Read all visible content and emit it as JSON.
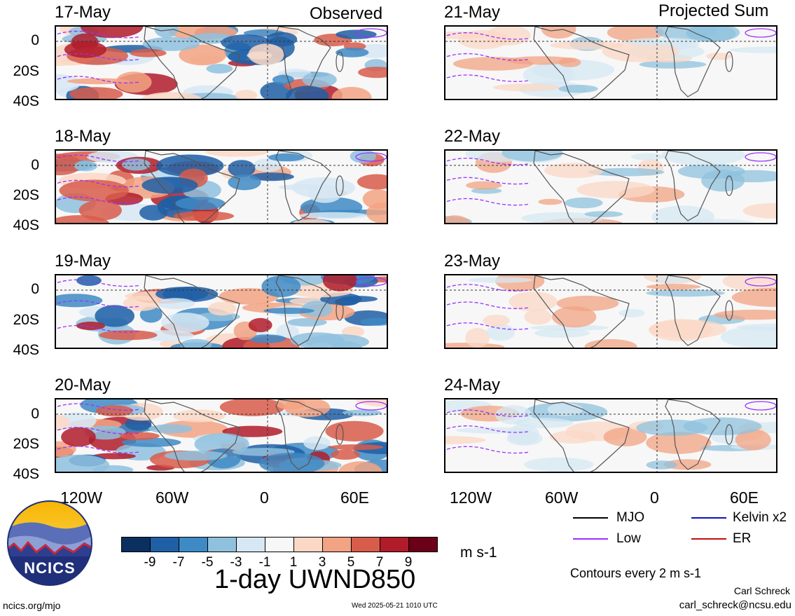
{
  "headers": {
    "observed": "Observed",
    "projected": "Projected Sum"
  },
  "panels": {
    "left": [
      "17-May",
      "18-May",
      "19-May",
      "20-May"
    ],
    "right": [
      "21-May",
      "22-May",
      "23-May",
      "24-May"
    ]
  },
  "lat_labels": [
    "0",
    "20S",
    "40S"
  ],
  "lon_labels": [
    "120W",
    "60W",
    "0",
    "60E"
  ],
  "colorbar": {
    "labels": [
      "-9",
      "-7",
      "-5",
      "-3",
      "-1",
      "1",
      "3",
      "5",
      "7",
      "9"
    ],
    "colors": [
      "#0b2f5e",
      "#1f5fa6",
      "#3e8ac4",
      "#8fc1de",
      "#d6e8f3",
      "#f7f7f7",
      "#fbd8c6",
      "#f2a383",
      "#d85c4a",
      "#b01c2a",
      "#6b0018"
    ],
    "units": "m s-1"
  },
  "title": "1-day UWND850",
  "legend": {
    "mjo": "MJO",
    "low": "Low",
    "kelvin": "Kelvin x2",
    "er": "ER",
    "contours_note": "Contours every 2 m s-1",
    "colors": {
      "mjo": "#000000",
      "low": "#9b30ff",
      "kelvin": "#1010c0",
      "er": "#c01010"
    }
  },
  "footer": {
    "site": "ncics.org/mjo",
    "timestamp": "Wed 2025-05-21 1010 UTC",
    "author": "Carl Schreck",
    "email": "carl_schreck@ncsu.edu"
  },
  "logo": {
    "text": "NCICS"
  }
}
